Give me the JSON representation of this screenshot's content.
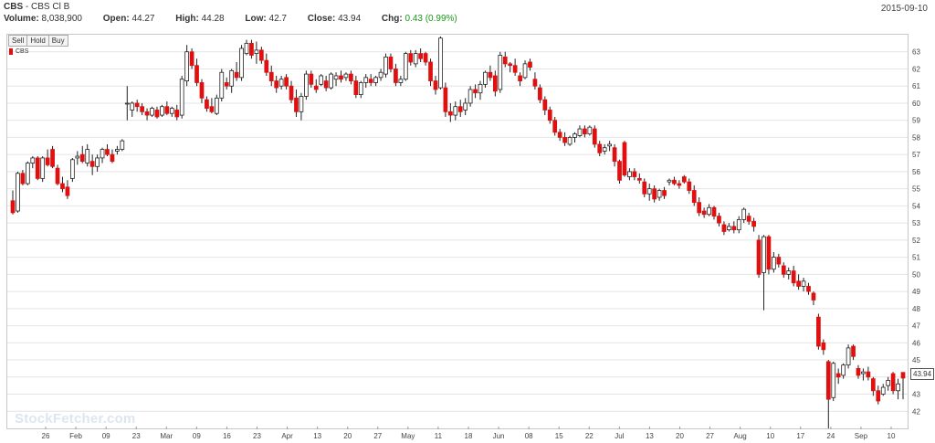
{
  "header": {
    "symbol": "CBS",
    "separator": " - ",
    "name": "CBS Cl B",
    "date": "2015-09-10",
    "volume_label": "Volume:",
    "volume": "8,038,900",
    "open_label": "Open:",
    "open": "44.27",
    "high_label": "High:",
    "high": "44.28",
    "low_label": "Low:",
    "low": "42.7",
    "close_label": "Close:",
    "close": "43.94",
    "chg_label": "Chg:",
    "chg": "0.43 (0.99%)"
  },
  "buttons": {
    "sell": "Sell",
    "hold": "Hold",
    "buy": "Buy"
  },
  "watermark": "StockFetcher.com",
  "colors": {
    "up": "#ffffff",
    "down": "#e01010",
    "outline": "#222222",
    "grid": "#e4e4e4"
  },
  "chart_data": {
    "type": "candlestick",
    "legend": [
      "CBS"
    ],
    "ylim": [
      41,
      64
    ],
    "yticks": [
      42,
      43,
      44,
      45,
      46,
      47,
      48,
      49,
      50,
      51,
      52,
      53,
      54,
      55,
      56,
      57,
      58,
      59,
      60,
      61,
      62,
      63
    ],
    "xtick_labels": [
      "26",
      "Feb",
      "09",
      "23",
      "Mar",
      "09",
      "16",
      "23",
      "Apr",
      "13",
      "20",
      "27",
      "May",
      "11",
      "18",
      "Jun",
      "08",
      "15",
      "22",
      "Jul",
      "13",
      "20",
      "27",
      "Aug",
      "10",
      "17",
      "24",
      "Sep",
      "10"
    ],
    "last_value": "43.94",
    "ohlc": [
      [
        54.3,
        54.9,
        53.5,
        53.6
      ],
      [
        53.7,
        56.0,
        53.6,
        55.9
      ],
      [
        55.9,
        56.1,
        55.2,
        55.3
      ],
      [
        55.3,
        56.6,
        55.2,
        56.5
      ],
      [
        56.5,
        56.9,
        56.2,
        56.8
      ],
      [
        56.8,
        56.9,
        55.5,
        55.6
      ],
      [
        55.6,
        56.9,
        55.4,
        56.8
      ],
      [
        56.8,
        57.3,
        56.3,
        56.4
      ],
      [
        57.3,
        57.5,
        56.2,
        56.3
      ],
      [
        56.2,
        56.4,
        55.2,
        55.3
      ],
      [
        55.3,
        55.7,
        54.8,
        55.0
      ],
      [
        55.1,
        55.5,
        54.4,
        54.6
      ],
      [
        55.6,
        56.8,
        55.4,
        56.7
      ],
      [
        56.8,
        57.2,
        56.4,
        56.9
      ],
      [
        57.0,
        57.5,
        56.5,
        56.6
      ],
      [
        56.5,
        57.6,
        56.3,
        57.3
      ],
      [
        56.6,
        57.0,
        55.8,
        56.3
      ],
      [
        56.3,
        57.0,
        56.0,
        56.8
      ],
      [
        56.8,
        57.4,
        56.5,
        57.3
      ],
      [
        57.3,
        57.6,
        56.9,
        57.0
      ],
      [
        57.0,
        57.3,
        56.5,
        56.6
      ],
      [
        57.2,
        57.5,
        57.0,
        57.3
      ],
      [
        57.3,
        57.9,
        57.2,
        57.8
      ],
      [
        60.0,
        61.0,
        59.0,
        60.0
      ],
      [
        59.6,
        60.1,
        59.2,
        60.0
      ],
      [
        60.0,
        60.2,
        59.5,
        59.8
      ],
      [
        59.8,
        60.0,
        59.3,
        59.5
      ],
      [
        59.5,
        59.7,
        59.0,
        59.3
      ],
      [
        59.3,
        59.8,
        59.2,
        59.7
      ],
      [
        59.6,
        59.8,
        59.1,
        59.2
      ],
      [
        59.3,
        59.9,
        59.2,
        59.8
      ],
      [
        59.8,
        60.1,
        59.3,
        59.4
      ],
      [
        59.4,
        59.8,
        59.2,
        59.7
      ],
      [
        59.6,
        59.9,
        59.0,
        59.2
      ],
      [
        59.3,
        61.6,
        59.1,
        61.4
      ],
      [
        61.3,
        63.4,
        61.0,
        63.0
      ],
      [
        63.0,
        63.2,
        62.0,
        62.2
      ],
      [
        62.2,
        62.6,
        61.0,
        61.2
      ],
      [
        61.2,
        61.4,
        60.0,
        60.3
      ],
      [
        60.2,
        60.4,
        59.5,
        59.7
      ],
      [
        59.8,
        60.3,
        59.4,
        59.5
      ],
      [
        59.4,
        60.5,
        59.3,
        60.3
      ],
      [
        60.3,
        62.0,
        60.1,
        61.8
      ],
      [
        61.2,
        61.5,
        60.8,
        61.0
      ],
      [
        61.0,
        62.0,
        60.6,
        61.9
      ],
      [
        61.8,
        62.4,
        61.3,
        61.5
      ],
      [
        61.5,
        63.4,
        61.3,
        63.2
      ],
      [
        62.9,
        63.7,
        62.8,
        63.5
      ],
      [
        63.5,
        63.7,
        62.6,
        62.8
      ],
      [
        62.9,
        63.6,
        62.3,
        63.1
      ],
      [
        63.1,
        63.3,
        62.3,
        62.5
      ],
      [
        62.5,
        62.9,
        61.6,
        61.8
      ],
      [
        61.8,
        62.2,
        61.0,
        61.3
      ],
      [
        61.3,
        61.6,
        60.6,
        60.9
      ],
      [
        61.0,
        61.6,
        60.8,
        61.4
      ],
      [
        61.5,
        61.7,
        60.8,
        61.0
      ],
      [
        61.0,
        61.3,
        60.0,
        60.2
      ],
      [
        60.3,
        60.8,
        59.2,
        59.5
      ],
      [
        59.5,
        60.6,
        59.0,
        60.4
      ],
      [
        60.4,
        61.9,
        60.2,
        61.7
      ],
      [
        61.7,
        61.9,
        60.9,
        61.1
      ],
      [
        61.0,
        61.4,
        60.6,
        60.8
      ],
      [
        61.1,
        61.7,
        61.0,
        61.6
      ],
      [
        61.3,
        61.6,
        60.7,
        60.9
      ],
      [
        60.9,
        61.8,
        60.8,
        61.7
      ],
      [
        61.4,
        61.8,
        61.0,
        61.6
      ],
      [
        61.6,
        61.9,
        61.2,
        61.4
      ],
      [
        61.5,
        61.8,
        61.3,
        61.7
      ],
      [
        61.7,
        61.9,
        61.1,
        61.3
      ],
      [
        61.3,
        61.6,
        60.3,
        60.5
      ],
      [
        60.5,
        61.3,
        60.3,
        61.2
      ],
      [
        61.2,
        61.7,
        60.9,
        61.5
      ],
      [
        61.4,
        61.7,
        61.0,
        61.2
      ],
      [
        61.2,
        61.6,
        61.0,
        61.5
      ],
      [
        61.5,
        62.0,
        61.3,
        61.8
      ],
      [
        61.7,
        62.9,
        61.5,
        62.7
      ],
      [
        62.7,
        62.9,
        61.8,
        62.0
      ],
      [
        62.0,
        62.3,
        61.0,
        61.2
      ],
      [
        61.2,
        61.6,
        61.0,
        61.4
      ],
      [
        61.4,
        63.0,
        61.3,
        62.9
      ],
      [
        62.9,
        63.1,
        62.2,
        62.4
      ],
      [
        62.3,
        63.1,
        62.1,
        62.9
      ],
      [
        62.9,
        63.2,
        62.4,
        62.6
      ],
      [
        62.9,
        63.0,
        62.2,
        62.4
      ],
      [
        62.4,
        62.6,
        61.0,
        61.3
      ],
      [
        61.3,
        61.6,
        60.5,
        60.8
      ],
      [
        60.9,
        63.9,
        60.8,
        63.8
      ],
      [
        60.9,
        61.2,
        59.2,
        59.5
      ],
      [
        59.5,
        60.0,
        58.9,
        59.3
      ],
      [
        59.3,
        60.1,
        59.0,
        59.8
      ],
      [
        59.8,
        60.2,
        59.2,
        59.5
      ],
      [
        59.6,
        60.3,
        59.3,
        60.0
      ],
      [
        60.0,
        61.0,
        59.8,
        60.8
      ],
      [
        60.8,
        61.1,
        60.3,
        60.6
      ],
      [
        60.6,
        61.3,
        60.2,
        61.1
      ],
      [
        61.1,
        61.9,
        60.9,
        61.8
      ],
      [
        61.8,
        62.2,
        61.3,
        61.5
      ],
      [
        61.6,
        61.9,
        60.4,
        60.7
      ],
      [
        60.8,
        63.0,
        60.6,
        62.8
      ],
      [
        62.7,
        63.0,
        62.1,
        62.3
      ],
      [
        62.3,
        62.4,
        61.8,
        62.2
      ],
      [
        62.2,
        62.6,
        61.6,
        61.8
      ],
      [
        61.6,
        61.8,
        61.0,
        61.3
      ],
      [
        61.5,
        62.5,
        61.4,
        62.3
      ],
      [
        62.4,
        62.6,
        61.9,
        62.1
      ],
      [
        61.4,
        61.8,
        60.8,
        61.0
      ],
      [
        60.9,
        61.1,
        60.0,
        60.2
      ],
      [
        60.2,
        60.4,
        59.3,
        59.6
      ],
      [
        59.6,
        59.8,
        58.8,
        59.0
      ],
      [
        59.0,
        59.2,
        58.1,
        58.3
      ],
      [
        58.3,
        58.5,
        57.8,
        58.0
      ],
      [
        58.0,
        58.3,
        57.5,
        57.7
      ],
      [
        57.6,
        58.1,
        57.5,
        58.0
      ],
      [
        58.0,
        58.3,
        57.7,
        58.2
      ],
      [
        58.1,
        58.7,
        58.0,
        58.5
      ],
      [
        58.5,
        58.7,
        58.0,
        58.2
      ],
      [
        58.2,
        58.7,
        58.1,
        58.6
      ],
      [
        58.5,
        58.7,
        57.4,
        57.6
      ],
      [
        57.6,
        57.8,
        56.9,
        57.1
      ],
      [
        57.2,
        57.6,
        57.0,
        57.4
      ],
      [
        57.5,
        57.8,
        57.2,
        57.6
      ],
      [
        57.4,
        57.6,
        56.3,
        56.6
      ],
      [
        56.6,
        56.7,
        55.3,
        55.5
      ],
      [
        57.7,
        57.8,
        55.7,
        55.8
      ],
      [
        55.7,
        56.2,
        55.5,
        56.0
      ],
      [
        56.0,
        56.2,
        55.5,
        55.7
      ],
      [
        55.6,
        55.9,
        55.3,
        55.5
      ],
      [
        55.4,
        55.6,
        54.5,
        54.7
      ],
      [
        54.7,
        55.3,
        54.3,
        55.0
      ],
      [
        55.0,
        55.2,
        54.2,
        54.4
      ],
      [
        54.5,
        55.0,
        54.3,
        54.9
      ],
      [
        54.9,
        55.1,
        54.4,
        54.6
      ],
      [
        55.4,
        55.6,
        55.2,
        55.5
      ],
      [
        55.5,
        55.7,
        55.2,
        55.3
      ],
      [
        55.3,
        55.5,
        55.0,
        55.2
      ],
      [
        55.7,
        55.8,
        55.3,
        55.4
      ],
      [
        55.4,
        55.6,
        54.7,
        54.9
      ],
      [
        54.9,
        55.2,
        54.0,
        54.2
      ],
      [
        54.2,
        54.5,
        53.4,
        53.6
      ],
      [
        53.7,
        53.9,
        53.3,
        53.5
      ],
      [
        53.5,
        54.1,
        53.4,
        53.9
      ],
      [
        53.9,
        54.0,
        53.2,
        53.4
      ],
      [
        53.4,
        53.6,
        52.8,
        53.0
      ],
      [
        52.9,
        53.1,
        52.3,
        52.5
      ],
      [
        52.6,
        53.0,
        52.5,
        52.8
      ],
      [
        52.8,
        53.1,
        52.4,
        52.6
      ],
      [
        52.6,
        53.4,
        52.4,
        53.2
      ],
      [
        53.2,
        53.9,
        53.0,
        53.8
      ],
      [
        53.4,
        53.6,
        52.9,
        53.1
      ],
      [
        53.1,
        53.3,
        52.5,
        52.8
      ],
      [
        52.0,
        52.3,
        49.8,
        50.0
      ],
      [
        50.1,
        52.3,
        47.9,
        52.2
      ],
      [
        52.2,
        52.3,
        50.0,
        50.3
      ],
      [
        50.3,
        51.3,
        50.1,
        51.0
      ],
      [
        51.0,
        51.2,
        50.4,
        50.6
      ],
      [
        50.5,
        50.7,
        49.8,
        50.0
      ],
      [
        50.0,
        50.4,
        49.7,
        50.2
      ],
      [
        50.2,
        50.5,
        49.3,
        49.5
      ],
      [
        49.6,
        50.0,
        49.1,
        49.3
      ],
      [
        49.3,
        49.8,
        49.0,
        49.6
      ],
      [
        49.3,
        49.5,
        48.8,
        49.0
      ],
      [
        48.9,
        49.0,
        48.2,
        48.5
      ],
      [
        47.5,
        47.7,
        45.6,
        45.8
      ],
      [
        46.0,
        46.2,
        45.3,
        45.6
      ],
      [
        44.9,
        45.0,
        41.0,
        42.7
      ],
      [
        42.8,
        44.9,
        42.6,
        44.8
      ],
      [
        44.2,
        44.5,
        43.6,
        44.0
      ],
      [
        44.1,
        44.8,
        43.9,
        44.7
      ],
      [
        44.7,
        45.9,
        44.5,
        45.7
      ],
      [
        45.8,
        45.9,
        45.0,
        45.2
      ],
      [
        44.5,
        44.7,
        43.9,
        44.1
      ],
      [
        44.2,
        44.5,
        43.8,
        44.3
      ],
      [
        44.3,
        44.6,
        43.8,
        44.0
      ],
      [
        43.9,
        44.0,
        42.9,
        43.2
      ],
      [
        43.2,
        43.5,
        42.4,
        42.6
      ],
      [
        43.0,
        43.6,
        42.9,
        43.4
      ],
      [
        43.5,
        44.0,
        43.2,
        43.8
      ],
      [
        44.2,
        44.3,
        43.0,
        43.2
      ],
      [
        43.2,
        43.9,
        42.7,
        43.6
      ],
      [
        44.27,
        44.28,
        42.7,
        43.94
      ]
    ]
  }
}
